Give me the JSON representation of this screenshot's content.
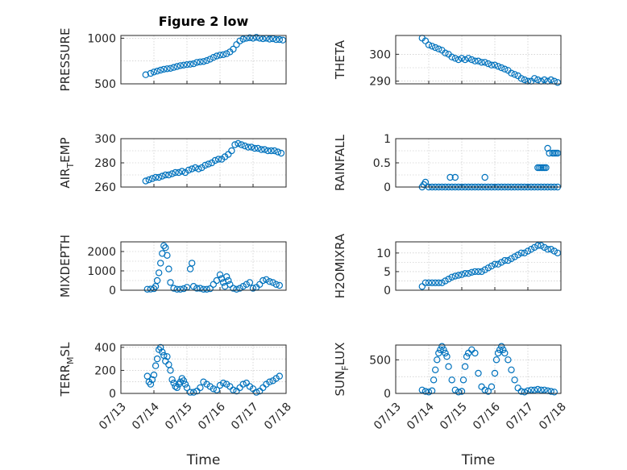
{
  "figure": {
    "title": "Figure 2 low",
    "colors": {
      "marker": "#0072BD",
      "axes": "#262626",
      "grid": "#bdbdbd"
    },
    "marker": "open-circle"
  },
  "chart_data": [
    {
      "type": "scatter",
      "name": "pressure",
      "ylabel": "PRESSURE",
      "xlabel": "",
      "xlim": [
        "07/13",
        "07/18"
      ],
      "ylim": [
        500,
        1030
      ],
      "yticks": [
        500,
        1000
      ],
      "xticks": [
        "07/13",
        "07/14",
        "07/15",
        "07/16",
        "07/17",
        "07/18"
      ],
      "grid": true,
      "series": [
        {
          "x": [
            0.75,
            0.9,
            1.0,
            1.1,
            1.2,
            1.3,
            1.4,
            1.5,
            1.6,
            1.7,
            1.8,
            1.9,
            2.0,
            2.1,
            2.2,
            2.3,
            2.4,
            2.5,
            2.6,
            2.7,
            2.8,
            2.9,
            3.0,
            3.1,
            3.2,
            3.3,
            3.4,
            3.5,
            3.6,
            3.7,
            3.8,
            3.9,
            4.0,
            4.1,
            4.2,
            4.3,
            4.4,
            4.5,
            4.6,
            4.7,
            4.8,
            4.9
          ],
          "y": [
            600,
            615,
            630,
            640,
            650,
            660,
            665,
            670,
            680,
            690,
            700,
            705,
            710,
            715,
            720,
            735,
            740,
            745,
            755,
            770,
            790,
            805,
            815,
            820,
            830,
            850,
            880,
            930,
            970,
            990,
            1000,
            1005,
            1000,
            1010,
            1000,
            995,
            1000,
            990,
            995,
            985,
            985,
            980
          ]
        }
      ]
    },
    {
      "type": "scatter",
      "name": "theta",
      "ylabel": "THETA",
      "xlabel": "",
      "xlim": [
        "07/13",
        "07/18"
      ],
      "ylim": [
        289,
        307
      ],
      "yticks": [
        290,
        300
      ],
      "xticks": [
        "07/13",
        "07/14",
        "07/15",
        "07/16",
        "07/17",
        "07/18"
      ],
      "grid": true,
      "series": [
        {
          "x": [
            0.8,
            0.9,
            1.0,
            1.1,
            1.2,
            1.3,
            1.4,
            1.5,
            1.6,
            1.7,
            1.8,
            1.9,
            2.0,
            2.1,
            2.2,
            2.3,
            2.4,
            2.5,
            2.6,
            2.7,
            2.8,
            2.9,
            3.0,
            3.1,
            3.2,
            3.3,
            3.4,
            3.5,
            3.6,
            3.7,
            3.8,
            3.9,
            4.0,
            4.1,
            4.2,
            4.3,
            4.4,
            4.5,
            4.6,
            4.7,
            4.8,
            4.9
          ],
          "y": [
            306,
            305,
            303.5,
            303,
            302.5,
            302,
            301.5,
            300.5,
            300,
            299,
            298.5,
            298,
            298.5,
            298,
            298.5,
            298,
            297.5,
            297.5,
            297,
            297,
            296.5,
            296,
            296,
            295.5,
            295,
            294.5,
            294,
            293,
            292.5,
            292,
            291,
            290.5,
            290,
            290,
            291,
            290.5,
            290,
            290.5,
            290,
            290.5,
            290,
            289.5
          ]
        }
      ]
    },
    {
      "type": "scatter",
      "name": "air_temp",
      "ylabel": "AIR_TEMP",
      "ylabel_rich": [
        "AIR",
        "T",
        "EMP"
      ],
      "xlabel": "",
      "xlim": [
        "07/13",
        "07/18"
      ],
      "ylim": [
        260,
        300
      ],
      "yticks": [
        260,
        280,
        300
      ],
      "xticks": [
        "07/13",
        "07/14",
        "07/15",
        "07/16",
        "07/17",
        "07/18"
      ],
      "grid": true,
      "series": [
        {
          "x": [
            0.75,
            0.85,
            0.95,
            1.05,
            1.15,
            1.25,
            1.35,
            1.45,
            1.55,
            1.65,
            1.75,
            1.85,
            1.95,
            2.05,
            2.15,
            2.25,
            2.35,
            2.45,
            2.55,
            2.65,
            2.75,
            2.85,
            2.95,
            3.05,
            3.15,
            3.25,
            3.35,
            3.45,
            3.55,
            3.65,
            3.75,
            3.85,
            3.95,
            4.05,
            4.15,
            4.25,
            4.35,
            4.45,
            4.55,
            4.65,
            4.75,
            4.85
          ],
          "y": [
            265,
            266,
            267,
            268,
            268,
            269,
            270,
            270,
            271,
            272,
            272,
            273,
            272,
            274,
            275,
            276,
            275,
            276,
            278,
            279,
            280,
            282,
            283,
            283,
            285,
            287,
            290,
            295,
            296,
            295,
            294,
            293,
            293,
            292,
            292,
            291,
            291,
            290,
            290,
            290,
            289,
            288
          ]
        }
      ]
    },
    {
      "type": "scatter",
      "name": "rainfall",
      "ylabel": "RAINFALL",
      "xlabel": "",
      "xlim": [
        "07/13",
        "07/18"
      ],
      "ylim": [
        0,
        1
      ],
      "yticks": [
        0,
        0.5,
        1
      ],
      "xticks": [
        "07/13",
        "07/14",
        "07/15",
        "07/16",
        "07/17",
        "07/18"
      ],
      "grid": true,
      "series": [
        {
          "x": [
            0.8,
            0.85,
            0.9,
            1.0,
            1.1,
            1.2,
            1.3,
            1.4,
            1.5,
            1.6,
            1.7,
            1.8,
            1.9,
            2.0,
            2.1,
            2.2,
            2.3,
            2.4,
            2.5,
            2.6,
            2.7,
            2.8,
            2.9,
            3.0,
            3.1,
            3.2,
            3.3,
            3.4,
            3.5,
            3.6,
            3.7,
            3.8,
            3.9,
            4.0,
            4.1,
            4.2,
            4.3,
            4.4,
            4.5,
            4.6,
            4.7,
            4.8,
            4.9,
            1.65,
            1.8,
            2.7,
            4.3,
            4.35,
            4.4,
            4.45,
            4.5,
            4.55,
            4.6,
            4.65,
            4.75,
            4.8,
            4.85,
            4.9
          ],
          "y": [
            0,
            0.05,
            0.1,
            0,
            0,
            0,
            0,
            0,
            0,
            0,
            0,
            0,
            0,
            0,
            0,
            0,
            0,
            0,
            0,
            0,
            0,
            0,
            0,
            0,
            0,
            0,
            0,
            0,
            0,
            0,
            0,
            0,
            0,
            0,
            0,
            0,
            0,
            0,
            0,
            0,
            0,
            0,
            0,
            0.2,
            0.2,
            0.2,
            0.4,
            0.4,
            0.4,
            0.4,
            0.4,
            0.4,
            0.8,
            0.7,
            0.7,
            0.7,
            0.7,
            0.7
          ]
        }
      ]
    },
    {
      "type": "scatter",
      "name": "mixdepth",
      "ylabel": "MIXDEPTH",
      "xlabel": "",
      "xlim": [
        "07/13",
        "07/18"
      ],
      "ylim": [
        0,
        2500
      ],
      "yticks": [
        0,
        1000,
        2000
      ],
      "xticks": [
        "07/13",
        "07/14",
        "07/15",
        "07/16",
        "07/17",
        "07/18"
      ],
      "grid": true,
      "series": [
        {
          "x": [
            0.8,
            0.9,
            1.0,
            1.05,
            1.1,
            1.15,
            1.2,
            1.25,
            1.3,
            1.35,
            1.4,
            1.45,
            1.5,
            1.6,
            1.7,
            1.8,
            1.9,
            2.0,
            2.1,
            2.15,
            2.2,
            2.3,
            2.4,
            2.5,
            2.6,
            2.7,
            2.8,
            2.9,
            3.0,
            3.05,
            3.1,
            3.15,
            3.2,
            3.25,
            3.3,
            3.4,
            3.5,
            3.6,
            3.7,
            3.8,
            3.9,
            4.0,
            4.1,
            4.2,
            4.3,
            4.4,
            4.5,
            4.6,
            4.7,
            4.8
          ],
          "y": [
            50,
            60,
            80,
            200,
            500,
            900,
            1400,
            1900,
            2300,
            2200,
            1800,
            1100,
            400,
            100,
            50,
            50,
            80,
            150,
            1100,
            1400,
            200,
            100,
            100,
            50,
            50,
            80,
            300,
            500,
            800,
            600,
            400,
            200,
            700,
            500,
            300,
            100,
            50,
            100,
            200,
            300,
            400,
            100,
            150,
            300,
            500,
            550,
            450,
            400,
            300,
            250
          ]
        }
      ]
    },
    {
      "type": "scatter",
      "name": "h2omixra",
      "ylabel": "H2OMIXRA",
      "xlabel": "",
      "xlim": [
        "07/13",
        "07/18"
      ],
      "ylim": [
        0,
        13
      ],
      "yticks": [
        0,
        5,
        10
      ],
      "xticks": [
        "07/13",
        "07/14",
        "07/15",
        "07/16",
        "07/17",
        "07/18"
      ],
      "grid": true,
      "series": [
        {
          "x": [
            0.8,
            0.9,
            1.0,
            1.1,
            1.2,
            1.3,
            1.4,
            1.5,
            1.6,
            1.7,
            1.8,
            1.9,
            2.0,
            2.1,
            2.2,
            2.3,
            2.4,
            2.5,
            2.6,
            2.7,
            2.8,
            2.9,
            3.0,
            3.1,
            3.2,
            3.3,
            3.4,
            3.5,
            3.6,
            3.7,
            3.8,
            3.9,
            4.0,
            4.1,
            4.2,
            4.3,
            4.4,
            4.5,
            4.6,
            4.7,
            4.8,
            4.9
          ],
          "y": [
            1,
            2,
            2,
            2,
            2,
            2,
            2,
            2.5,
            3,
            3.5,
            3.8,
            4,
            4.2,
            4.5,
            4.5,
            4.8,
            5,
            5,
            5,
            5.5,
            6,
            6.5,
            7,
            7,
            7.5,
            8,
            8,
            8.5,
            9,
            9.5,
            10,
            10,
            10.5,
            11,
            11.5,
            12,
            12,
            11.5,
            11,
            11,
            10.5,
            10
          ]
        }
      ]
    },
    {
      "type": "scatter",
      "name": "terr_msl",
      "ylabel": "TERR_MSL",
      "ylabel_rich": [
        "TERR",
        "M",
        "SL"
      ],
      "xlabel": "Time",
      "xlim": [
        "07/13",
        "07/18"
      ],
      "ylim": [
        0,
        420
      ],
      "yticks": [
        0,
        200,
        400
      ],
      "xticks": [
        "07/13",
        "07/14",
        "07/15",
        "07/16",
        "07/17",
        "07/18"
      ],
      "grid": true,
      "series": [
        {
          "x": [
            0.8,
            0.85,
            0.9,
            0.95,
            1.0,
            1.05,
            1.1,
            1.15,
            1.2,
            1.25,
            1.3,
            1.35,
            1.4,
            1.45,
            1.5,
            1.55,
            1.6,
            1.65,
            1.7,
            1.75,
            1.8,
            1.85,
            1.9,
            1.95,
            2.0,
            2.1,
            2.2,
            2.3,
            2.4,
            2.5,
            2.6,
            2.7,
            2.8,
            2.9,
            3.0,
            3.1,
            3.2,
            3.3,
            3.4,
            3.5,
            3.6,
            3.7,
            3.8,
            3.9,
            4.0,
            4.1,
            4.2,
            4.3,
            4.4,
            4.5,
            4.6,
            4.7,
            4.8
          ],
          "y": [
            150,
            100,
            80,
            120,
            160,
            240,
            300,
            380,
            400,
            360,
            330,
            280,
            320,
            250,
            200,
            120,
            90,
            60,
            50,
            80,
            100,
            130,
            110,
            80,
            50,
            10,
            10,
            20,
            50,
            100,
            80,
            60,
            40,
            30,
            70,
            90,
            80,
            60,
            30,
            20,
            50,
            80,
            90,
            60,
            40,
            10,
            20,
            50,
            80,
            100,
            110,
            130,
            150
          ]
        }
      ]
    },
    {
      "type": "scatter",
      "name": "sun_flux",
      "ylabel": "SUN_FLUX",
      "ylabel_rich": [
        "SUN",
        "F",
        "LUX"
      ],
      "xlabel": "Time",
      "xlim": [
        "07/13",
        "07/18"
      ],
      "ylim": [
        0,
        720
      ],
      "yticks": [
        0,
        500
      ],
      "xticks": [
        "07/13",
        "07/14",
        "07/15",
        "07/16",
        "07/17",
        "07/18"
      ],
      "grid": true,
      "series": [
        {
          "x": [
            0.8,
            0.9,
            1.0,
            1.1,
            1.15,
            1.2,
            1.25,
            1.3,
            1.35,
            1.4,
            1.45,
            1.5,
            1.55,
            1.6,
            1.7,
            1.8,
            1.9,
            2.0,
            2.05,
            2.1,
            2.15,
            2.2,
            2.3,
            2.4,
            2.5,
            2.6,
            2.7,
            2.8,
            2.9,
            3.0,
            3.05,
            3.1,
            3.15,
            3.2,
            3.25,
            3.3,
            3.4,
            3.5,
            3.6,
            3.7,
            3.8,
            3.9,
            4.0,
            4.1,
            4.2,
            4.3,
            4.4,
            4.5,
            4.6,
            4.7,
            4.8
          ],
          "y": [
            50,
            30,
            20,
            40,
            200,
            350,
            500,
            600,
            650,
            700,
            650,
            600,
            550,
            400,
            200,
            50,
            20,
            30,
            200,
            400,
            550,
            600,
            650,
            600,
            300,
            100,
            50,
            30,
            100,
            300,
            500,
            600,
            650,
            700,
            650,
            600,
            500,
            350,
            200,
            80,
            30,
            20,
            40,
            50,
            50,
            60,
            50,
            50,
            40,
            30,
            20
          ]
        }
      ]
    }
  ]
}
